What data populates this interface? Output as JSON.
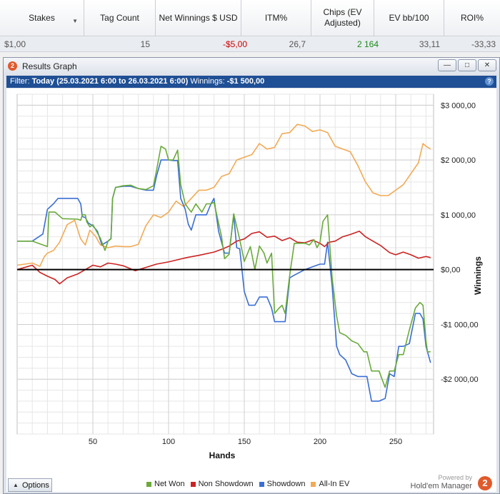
{
  "table": {
    "headers": [
      {
        "label": "Stakes",
        "sortable": true
      },
      {
        "label": "Tag Count"
      },
      {
        "label": "Net Winnings $ USD"
      },
      {
        "label": "ITM%"
      },
      {
        "label": "Chips (EV Adjusted)"
      },
      {
        "label": "EV bb/100"
      },
      {
        "label": "ROI%"
      }
    ],
    "row": {
      "stakes": "$1,00",
      "tag_count": "15",
      "net_winnings": "-$5,00",
      "itm": "26,7",
      "chips_ev": "2 164",
      "ev_bb100": "33,11",
      "roi": "-33,33"
    },
    "negative_color": "#cc0000",
    "positive_color": "#1a8a1a"
  },
  "window": {
    "title": "Results Graph",
    "app_badge": "2",
    "buttons": {
      "minimize": "—",
      "restore": "□",
      "close": "✕"
    },
    "filter_label": "Filter:",
    "filter_text": "Today (25.03.2021 6:00 to 26.03.2021 6:00)",
    "winnings_label": "Winnings:",
    "winnings_value": "-$1 500,00",
    "help": "?"
  },
  "bottom": {
    "options_label": "Options",
    "powered_by": "Powered by",
    "product_name": "Hold'em Manager",
    "product_badge": "2"
  },
  "chart_data": {
    "type": "line",
    "xlabel": "Hands",
    "ylabel": "Winnings",
    "xlim": [
      0,
      275
    ],
    "ylim": [
      -3000,
      3200
    ],
    "xticks": [
      50,
      100,
      150,
      200,
      250
    ],
    "yticks": [
      3000,
      2000,
      1000,
      0,
      -1000,
      -2000
    ],
    "ytick_labels": [
      "$3 000,00",
      "$2 000,00",
      "$1 000,00",
      "$0,00",
      "-$1 000,00",
      "-$2 000,00"
    ],
    "grid": true,
    "legend_position": "bottom",
    "series": [
      {
        "name": "Net Won",
        "color": "#6aaa3a",
        "points": [
          [
            0,
            520
          ],
          [
            10,
            520
          ],
          [
            20,
            420
          ],
          [
            21,
            1050
          ],
          [
            25,
            1050
          ],
          [
            30,
            930
          ],
          [
            40,
            920
          ],
          [
            42,
            900
          ],
          [
            43,
            1000
          ],
          [
            45,
            1000
          ],
          [
            46,
            870
          ],
          [
            48,
            780
          ],
          [
            50,
            820
          ],
          [
            55,
            570
          ],
          [
            58,
            350
          ],
          [
            60,
            520
          ],
          [
            62,
            560
          ],
          [
            63,
            1300
          ],
          [
            65,
            1500
          ],
          [
            70,
            1530
          ],
          [
            75,
            1540
          ],
          [
            80,
            1480
          ],
          [
            85,
            1460
          ],
          [
            90,
            1530
          ],
          [
            92,
            1800
          ],
          [
            95,
            2250
          ],
          [
            98,
            2200
          ],
          [
            100,
            2000
          ],
          [
            103,
            2000
          ],
          [
            106,
            2180
          ],
          [
            108,
            1550
          ],
          [
            111,
            1200
          ],
          [
            113,
            1120
          ],
          [
            115,
            1050
          ],
          [
            118,
            1200
          ],
          [
            122,
            1050
          ],
          [
            125,
            1200
          ],
          [
            128,
            1200
          ],
          [
            130,
            1230
          ],
          [
            135,
            600
          ],
          [
            137,
            200
          ],
          [
            140,
            280
          ],
          [
            143,
            1020
          ],
          [
            147,
            550
          ],
          [
            150,
            150
          ],
          [
            154,
            420
          ],
          [
            157,
            0
          ],
          [
            160,
            430
          ],
          [
            163,
            300
          ],
          [
            165,
            120
          ],
          [
            168,
            300
          ],
          [
            170,
            -800
          ],
          [
            173,
            -700
          ],
          [
            175,
            -650
          ],
          [
            177,
            -800
          ],
          [
            180,
            -100
          ],
          [
            183,
            480
          ],
          [
            190,
            480
          ],
          [
            193,
            450
          ],
          [
            196,
            550
          ],
          [
            198,
            400
          ],
          [
            200,
            500
          ],
          [
            202,
            880
          ],
          [
            205,
            1000
          ],
          [
            208,
            -150
          ],
          [
            211,
            -850
          ],
          [
            213,
            -1150
          ],
          [
            217,
            -1200
          ],
          [
            221,
            -1300
          ],
          [
            225,
            -1350
          ],
          [
            229,
            -1500
          ],
          [
            231,
            -1500
          ],
          [
            234,
            -1850
          ],
          [
            239,
            -1850
          ],
          [
            243,
            -2150
          ],
          [
            246,
            -1850
          ],
          [
            249,
            -1850
          ],
          [
            252,
            -1550
          ],
          [
            255,
            -1550
          ],
          [
            259,
            -1100
          ],
          [
            263,
            -700
          ],
          [
            266,
            -600
          ],
          [
            268,
            -650
          ],
          [
            270,
            -1300
          ],
          [
            271,
            -1500
          ],
          [
            273,
            -1500
          ]
        ]
      },
      {
        "name": "Non Showdown",
        "color": "#cc2222",
        "points": [
          [
            0,
            0
          ],
          [
            10,
            80
          ],
          [
            15,
            -50
          ],
          [
            20,
            -120
          ],
          [
            25,
            -180
          ],
          [
            28,
            -260
          ],
          [
            33,
            -150
          ],
          [
            40,
            -80
          ],
          [
            45,
            0
          ],
          [
            50,
            80
          ],
          [
            55,
            50
          ],
          [
            60,
            120
          ],
          [
            65,
            100
          ],
          [
            70,
            70
          ],
          [
            78,
            -20
          ],
          [
            85,
            40
          ],
          [
            92,
            100
          ],
          [
            100,
            140
          ],
          [
            106,
            180
          ],
          [
            112,
            220
          ],
          [
            120,
            260
          ],
          [
            130,
            320
          ],
          [
            136,
            380
          ],
          [
            140,
            430
          ],
          [
            145,
            520
          ],
          [
            150,
            560
          ],
          [
            155,
            660
          ],
          [
            160,
            690
          ],
          [
            165,
            590
          ],
          [
            170,
            610
          ],
          [
            175,
            530
          ],
          [
            180,
            580
          ],
          [
            185,
            500
          ],
          [
            190,
            490
          ],
          [
            195,
            540
          ],
          [
            200,
            480
          ],
          [
            203,
            420
          ],
          [
            206,
            500
          ],
          [
            210,
            520
          ],
          [
            215,
            600
          ],
          [
            220,
            640
          ],
          [
            226,
            700
          ],
          [
            230,
            600
          ],
          [
            235,
            520
          ],
          [
            240,
            440
          ],
          [
            246,
            310
          ],
          [
            250,
            270
          ],
          [
            255,
            320
          ],
          [
            260,
            270
          ],
          [
            265,
            210
          ],
          [
            270,
            240
          ],
          [
            273,
            220
          ]
        ]
      },
      {
        "name": "Showdown",
        "color": "#3a6ed4",
        "points": [
          [
            0,
            520
          ],
          [
            10,
            520
          ],
          [
            17,
            650
          ],
          [
            20,
            1100
          ],
          [
            24,
            1200
          ],
          [
            27,
            1300
          ],
          [
            30,
            1300
          ],
          [
            35,
            1300
          ],
          [
            40,
            1300
          ],
          [
            42,
            1200
          ],
          [
            43,
            970
          ],
          [
            45,
            950
          ],
          [
            47,
            850
          ],
          [
            50,
            800
          ],
          [
            53,
            700
          ],
          [
            56,
            450
          ],
          [
            60,
            520
          ],
          [
            62,
            570
          ],
          [
            63,
            1300
          ],
          [
            65,
            1500
          ],
          [
            70,
            1520
          ],
          [
            75,
            1520
          ],
          [
            80,
            1480
          ],
          [
            85,
            1450
          ],
          [
            90,
            1450
          ],
          [
            92,
            1700
          ],
          [
            95,
            2000
          ],
          [
            98,
            2000
          ],
          [
            100,
            2000
          ],
          [
            103,
            1990
          ],
          [
            106,
            1990
          ],
          [
            108,
            1300
          ],
          [
            111,
            1100
          ],
          [
            113,
            830
          ],
          [
            115,
            720
          ],
          [
            118,
            1000
          ],
          [
            122,
            1000
          ],
          [
            125,
            1000
          ],
          [
            128,
            1200
          ],
          [
            130,
            1300
          ],
          [
            133,
            700
          ],
          [
            135,
            500
          ],
          [
            137,
            300
          ],
          [
            140,
            300
          ],
          [
            143,
            1000
          ],
          [
            145,
            400
          ],
          [
            147,
            380
          ],
          [
            150,
            -400
          ],
          [
            153,
            -650
          ],
          [
            155,
            -650
          ],
          [
            157,
            -650
          ],
          [
            160,
            -500
          ],
          [
            163,
            -500
          ],
          [
            165,
            -500
          ],
          [
            168,
            -700
          ],
          [
            170,
            -950
          ],
          [
            173,
            -950
          ],
          [
            175,
            -950
          ],
          [
            177,
            -950
          ],
          [
            180,
            -150
          ],
          [
            183,
            -100
          ],
          [
            190,
            0
          ],
          [
            195,
            50
          ],
          [
            200,
            100
          ],
          [
            203,
            100
          ],
          [
            205,
            500
          ],
          [
            208,
            -300
          ],
          [
            211,
            -1400
          ],
          [
            213,
            -1550
          ],
          [
            217,
            -1650
          ],
          [
            221,
            -1900
          ],
          [
            225,
            -1950
          ],
          [
            229,
            -1950
          ],
          [
            231,
            -1950
          ],
          [
            234,
            -2400
          ],
          [
            239,
            -2400
          ],
          [
            243,
            -2350
          ],
          [
            246,
            -1900
          ],
          [
            249,
            -1950
          ],
          [
            252,
            -1400
          ],
          [
            255,
            -1400
          ],
          [
            259,
            -1350
          ],
          [
            263,
            -800
          ],
          [
            266,
            -800
          ],
          [
            268,
            -900
          ],
          [
            270,
            -1400
          ],
          [
            273,
            -1700
          ]
        ]
      },
      {
        "name": "All-In EV",
        "color": "#f2aa55",
        "points": [
          [
            0,
            80
          ],
          [
            10,
            120
          ],
          [
            15,
            60
          ],
          [
            18,
            240
          ],
          [
            20,
            300
          ],
          [
            24,
            350
          ],
          [
            28,
            500
          ],
          [
            33,
            820
          ],
          [
            38,
            900
          ],
          [
            42,
            560
          ],
          [
            45,
            450
          ],
          [
            48,
            720
          ],
          [
            52,
            600
          ],
          [
            55,
            450
          ],
          [
            60,
            400
          ],
          [
            65,
            430
          ],
          [
            70,
            420
          ],
          [
            75,
            420
          ],
          [
            80,
            460
          ],
          [
            85,
            800
          ],
          [
            90,
            1000
          ],
          [
            95,
            950
          ],
          [
            100,
            1050
          ],
          [
            105,
            1250
          ],
          [
            110,
            1150
          ],
          [
            115,
            1300
          ],
          [
            120,
            1450
          ],
          [
            125,
            1450
          ],
          [
            130,
            1500
          ],
          [
            135,
            1700
          ],
          [
            140,
            1750
          ],
          [
            145,
            2000
          ],
          [
            150,
            2050
          ],
          [
            155,
            2100
          ],
          [
            160,
            2300
          ],
          [
            165,
            2200
          ],
          [
            170,
            2230
          ],
          [
            175,
            2480
          ],
          [
            180,
            2500
          ],
          [
            185,
            2650
          ],
          [
            190,
            2620
          ],
          [
            195,
            2520
          ],
          [
            200,
            2550
          ],
          [
            205,
            2500
          ],
          [
            210,
            2250
          ],
          [
            215,
            2200
          ],
          [
            220,
            2150
          ],
          [
            225,
            1900
          ],
          [
            230,
            1600
          ],
          [
            235,
            1400
          ],
          [
            240,
            1350
          ],
          [
            245,
            1350
          ],
          [
            250,
            1450
          ],
          [
            255,
            1550
          ],
          [
            260,
            1750
          ],
          [
            265,
            1950
          ],
          [
            268,
            2300
          ],
          [
            270,
            2250
          ],
          [
            273,
            2200
          ]
        ]
      }
    ],
    "zero_line_color": "#000000"
  }
}
